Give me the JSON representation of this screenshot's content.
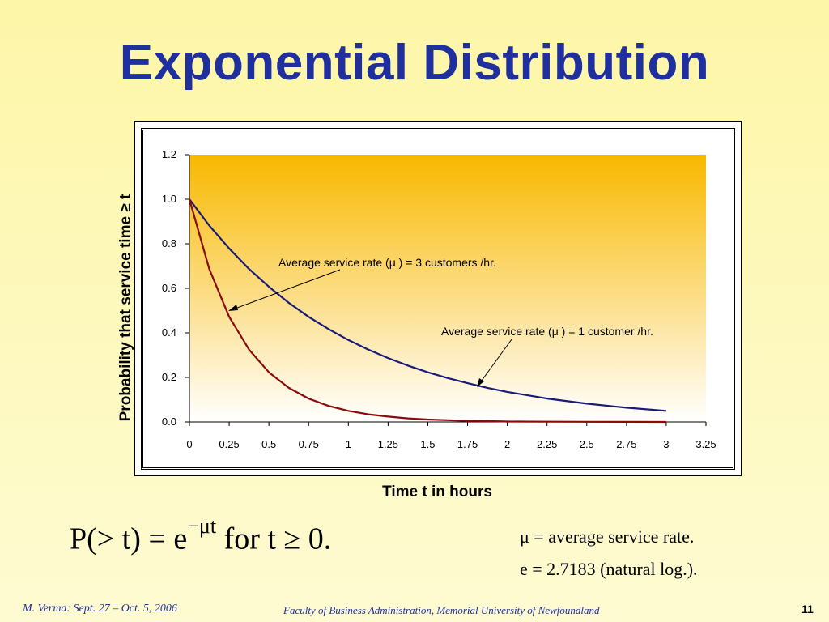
{
  "slide": {
    "title": "Exponential Distribution",
    "footer_left": "M. Verma: Sept. 27 – Oct. 5, 2006",
    "footer_center": "Faculty of Business Administration, Memorial University of Newfoundland",
    "page_number": "11"
  },
  "formula": {
    "lhs": "P(> t) = e",
    "exponent": "−μt",
    "rhs": " for t  ≥ 0.",
    "def_mu": "μ = average service rate.",
    "def_e": "e = 2.7183  (natural log.)."
  },
  "chart_data": {
    "type": "line",
    "xlabel": "Time t in hours",
    "ylabel": "Probability that service time ≥ t",
    "xlim": [
      0,
      3.25
    ],
    "ylim": [
      0,
      1.2
    ],
    "x_ticks": [
      "0",
      "0.25",
      "0.5",
      "0.75",
      "1",
      "1.25",
      "1.5",
      "1.75",
      "2",
      "2.25",
      "2.5",
      "2.75",
      "3",
      "3.25"
    ],
    "y_ticks": [
      "0.0",
      "0.2",
      "0.4",
      "0.6",
      "0.8",
      "1.0",
      "1.2"
    ],
    "x": [
      0,
      0.125,
      0.25,
      0.375,
      0.5,
      0.625,
      0.75,
      0.875,
      1,
      1.125,
      1.25,
      1.375,
      1.5,
      1.625,
      1.75,
      1.875,
      2,
      2.25,
      2.5,
      2.75,
      3
    ],
    "series": [
      {
        "annotation": "Average service rate (μ ) = 1 customer /hr.",
        "color": "#1a1a7a",
        "values": [
          1.0,
          0.882,
          0.779,
          0.687,
          0.607,
          0.535,
          0.472,
          0.417,
          0.368,
          0.325,
          0.287,
          0.253,
          0.223,
          0.197,
          0.174,
          0.153,
          0.135,
          0.105,
          0.082,
          0.064,
          0.05
        ]
      },
      {
        "annotation": "Average service rate (μ ) = 3 customers /hr.",
        "color": "#8b0a0a",
        "values": [
          1.0,
          0.687,
          0.472,
          0.325,
          0.223,
          0.153,
          0.105,
          0.072,
          0.05,
          0.034,
          0.024,
          0.016,
          0.011,
          0.008,
          0.005,
          0.004,
          0.002,
          0.001,
          0.0006,
          0.0003,
          0.0001
        ]
      }
    ],
    "grid": false,
    "plot_background": "gradient orange-to-white",
    "gradient_top": "#f8b800",
    "gradient_bottom": "#ffffff"
  }
}
